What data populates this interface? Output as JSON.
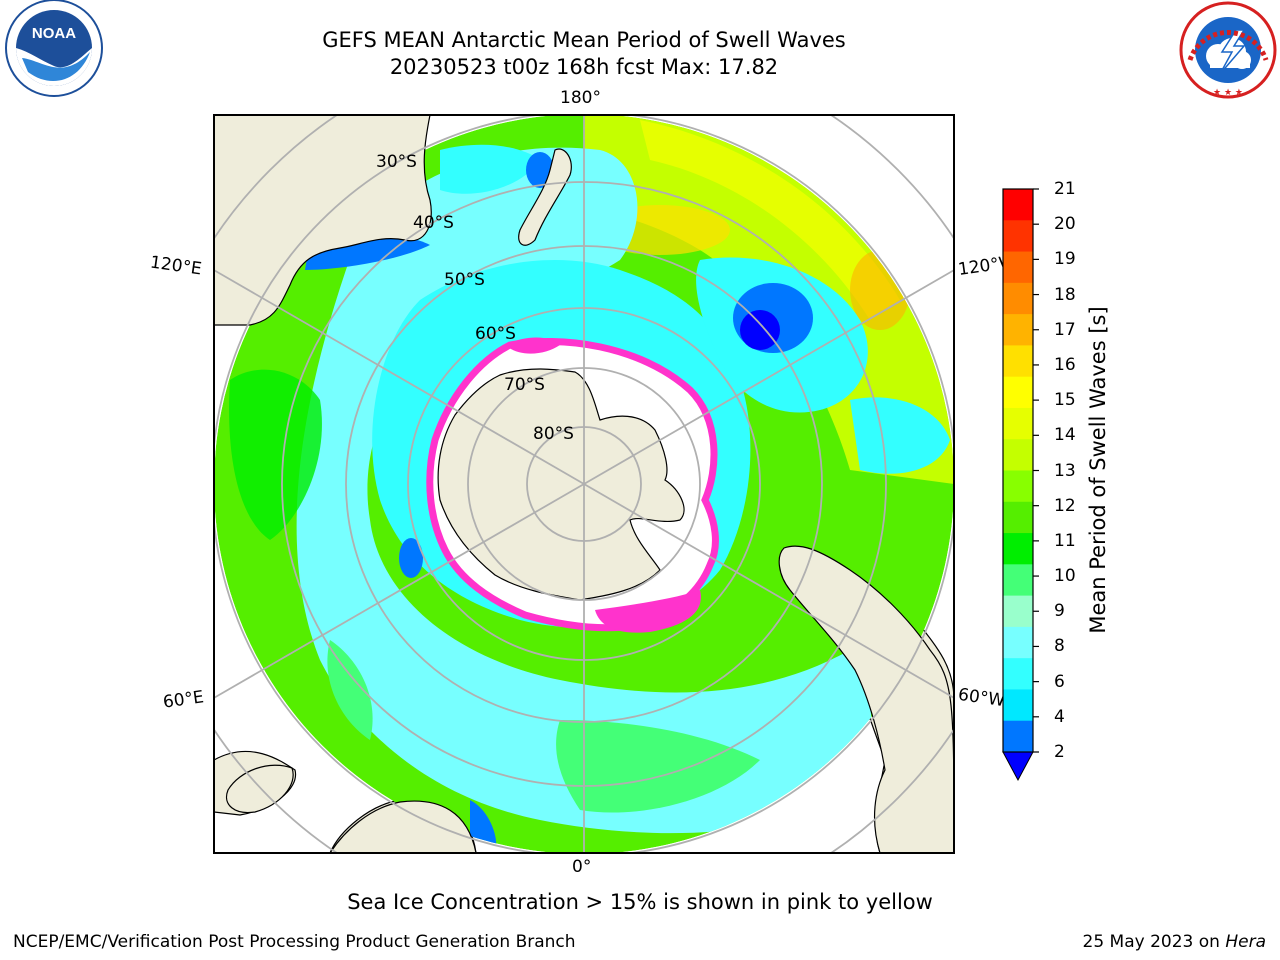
{
  "header": {
    "title_line1": "GEFS MEAN Antarctic Mean Period of Swell Waves",
    "title_line2": "20230523 t00z 168h fcst   Max: 17.82"
  },
  "logos": {
    "left": {
      "name": "noaa-logo",
      "text": "NOAA",
      "ring_text": "NATIONAL OCEANIC AND ATMOSPHERIC ADMINISTRATION · U.S. DEPARTMENT OF COMMERCE"
    },
    "right": {
      "name": "nws-logo",
      "ring_text": "NATIONAL WEATHER SERVICE"
    }
  },
  "map": {
    "projection": "south-polar-stereographic",
    "meridian_labels": [
      "180°",
      "120°E",
      "120°W",
      "60°E",
      "60°W",
      "0°"
    ],
    "parallel_labels": [
      "30°S",
      "40°S",
      "50°S",
      "60°S",
      "70°S",
      "80°S"
    ],
    "field": "Mean Period of Swell Waves",
    "ice_overlay": "pink to yellow"
  },
  "colorbar": {
    "title": "Mean Period of Swell Waves [s]",
    "ticks": [
      "21",
      "20",
      "19",
      "18",
      "17",
      "16",
      "15",
      "14",
      "13",
      "12",
      "11",
      "10",
      "9",
      "8",
      "6",
      "4",
      "2"
    ],
    "colors_top_to_bottom": [
      "#ff0000",
      "#ff3300",
      "#ff6600",
      "#ff8c00",
      "#ffb300",
      "#ffe000",
      "#ffff00",
      "#e6ff00",
      "#c4ff00",
      "#88ff00",
      "#55ee00",
      "#00ee00",
      "#44ff77",
      "#99ffcc",
      "#77ffff",
      "#33ffff",
      "#00e8ff",
      "#0077ff"
    ],
    "extend_color": "#0000ff"
  },
  "footnote": "Sea Ice Concentration > 15% is shown in pink to yellow",
  "footer": {
    "left": "NCEP/EMC/Verification Post Processing Product Generation Branch",
    "date": "25 May 2023 on ",
    "host": "Hera"
  },
  "colors": {
    "land": "#efeddb",
    "ice_edge": "#ff33cc",
    "grid": "#b0b0b0"
  }
}
